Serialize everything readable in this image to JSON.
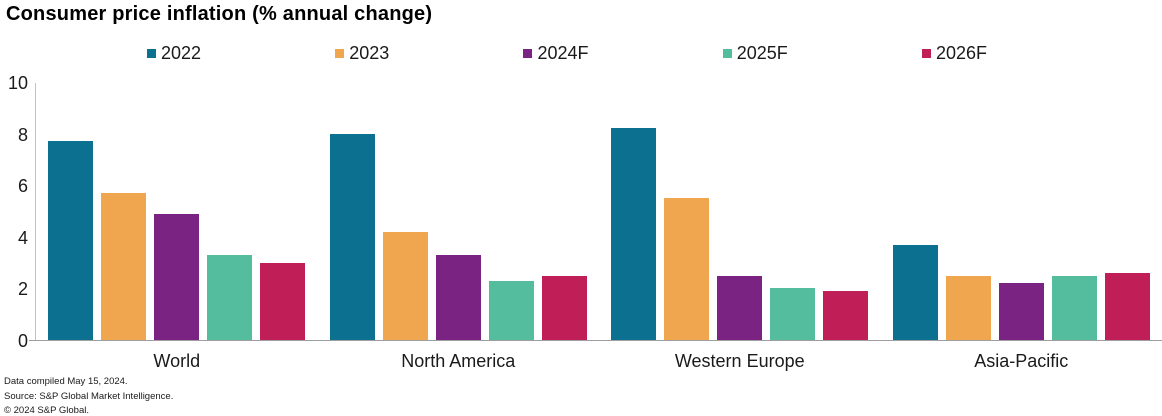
{
  "title": "Consumer price inflation (% annual change)",
  "chart_data": {
    "type": "bar",
    "title": "Consumer price inflation (% annual change)",
    "categories": [
      "World",
      "North America",
      "Western Europe",
      "Asia-Pacific"
    ],
    "series": [
      {
        "name": "2022",
        "color": "#0C7190",
        "values": [
          7.7,
          8.0,
          8.2,
          3.7
        ]
      },
      {
        "name": "2023",
        "color": "#F0A64E",
        "values": [
          5.7,
          4.2,
          5.5,
          2.5
        ]
      },
      {
        "name": "2024F",
        "color": "#7B2383",
        "values": [
          4.9,
          3.3,
          2.5,
          2.2
        ]
      },
      {
        "name": "2025F",
        "color": "#54BD9E",
        "values": [
          3.3,
          2.3,
          2.0,
          2.5
        ]
      },
      {
        "name": "2026F",
        "color": "#BF1E56",
        "values": [
          3.0,
          2.5,
          1.9,
          2.6
        ]
      }
    ],
    "xlabel": "",
    "ylabel": "",
    "ylim": [
      0,
      10
    ],
    "yticks": [
      0,
      2,
      4,
      6,
      8,
      10
    ],
    "grid": false,
    "legend_position": "top"
  },
  "footer": {
    "line1": "Data compiled May 15, 2024.",
    "line2": "Source: S&P Global Market Intelligence.",
    "line3": "© 2024 S&P Global."
  }
}
